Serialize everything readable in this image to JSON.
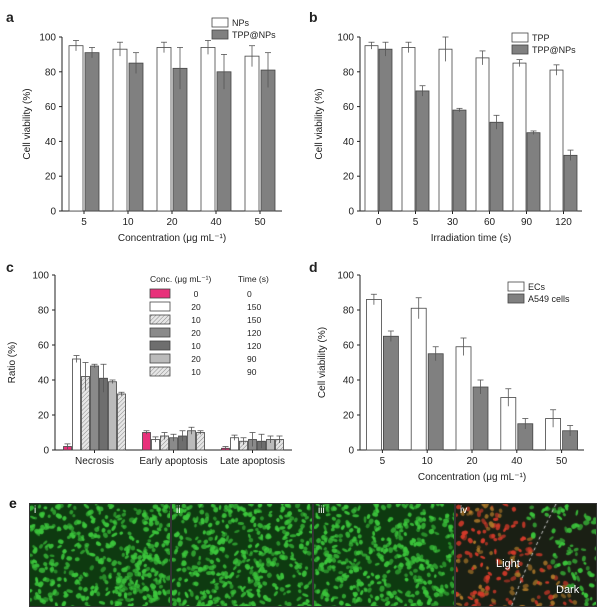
{
  "chart_data": [
    {
      "panel": "a",
      "type": "bar",
      "categories": [
        "5",
        "10",
        "20",
        "40",
        "50"
      ],
      "xlabel": "Concentration (μg mL⁻¹)",
      "ylabel": "Cell viability (%)",
      "ylim": [
        0,
        100
      ],
      "yticks": [
        "0",
        "20",
        "40",
        "60",
        "80",
        "100"
      ],
      "legend_position": "top-right",
      "series": [
        {
          "name": "NPs",
          "color": "#ffffff",
          "values": [
            95,
            93,
            94,
            94,
            89
          ],
          "errors": [
            3,
            4,
            3,
            4,
            6
          ]
        },
        {
          "name": "TPP@NPs",
          "color": "#808080",
          "values": [
            91,
            85,
            82,
            80,
            81
          ],
          "errors": [
            3,
            6,
            12,
            10,
            10
          ]
        }
      ]
    },
    {
      "panel": "b",
      "type": "bar",
      "categories": [
        "0",
        "5",
        "30",
        "60",
        "90",
        "120"
      ],
      "xlabel": "Irradiation time (s)",
      "ylabel": "Cell viability (%)",
      "ylim": [
        0,
        100
      ],
      "yticks": [
        "0",
        "20",
        "40",
        "60",
        "80",
        "100"
      ],
      "legend_position": "top-right",
      "series": [
        {
          "name": "TPP",
          "color": "#ffffff",
          "values": [
            95,
            94,
            93,
            88,
            85,
            81
          ],
          "errors": [
            2,
            3,
            7,
            4,
            2,
            3
          ]
        },
        {
          "name": "TPP@NPs",
          "color": "#808080",
          "values": [
            93,
            69,
            58,
            51,
            45,
            32
          ],
          "errors": [
            4,
            3,
            1,
            4,
            1,
            3
          ]
        }
      ]
    },
    {
      "panel": "c",
      "type": "bar",
      "categories": [
        "Necrosis",
        "Early apoptosis",
        "Late apoptosis"
      ],
      "ylabel": "Ratio (%)",
      "ylim": [
        0,
        100
      ],
      "yticks": [
        "0",
        "20",
        "40",
        "60",
        "80",
        "100"
      ],
      "legend_position": "top-right",
      "legend_header": [
        "Conc. (μg mL⁻¹)",
        "Time (s)"
      ],
      "series": [
        {
          "conc": "0",
          "time": "0",
          "color": "#e8307a",
          "pattern": "solid",
          "values": [
            2,
            10,
            1
          ],
          "errors": [
            1.5,
            1,
            1
          ]
        },
        {
          "conc": "20",
          "time": "150",
          "color": "#ffffff",
          "pattern": "solid",
          "values": [
            52,
            6,
            7
          ],
          "errors": [
            2,
            1.5,
            1.5
          ]
        },
        {
          "conc": "10",
          "time": "150",
          "color": "#d8d8d8",
          "pattern": "hatch",
          "values": [
            42,
            8,
            5
          ],
          "errors": [
            8,
            2,
            2
          ]
        },
        {
          "conc": "20",
          "time": "120",
          "color": "#8a8a8a",
          "pattern": "solid",
          "values": [
            48,
            7,
            6
          ],
          "errors": [
            1,
            2,
            4
          ]
        },
        {
          "conc": "10",
          "time": "120",
          "color": "#6e6e6e",
          "pattern": "solid",
          "values": [
            41,
            8,
            5
          ],
          "errors": [
            8,
            3,
            4
          ]
        },
        {
          "conc": "20",
          "time": "90",
          "color": "#bbbbbb",
          "pattern": "solid",
          "values": [
            39,
            11,
            6
          ],
          "errors": [
            1,
            2,
            2
          ]
        },
        {
          "conc": "10",
          "time": "90",
          "color": "#cfcfcf",
          "pattern": "hatch",
          "values": [
            32,
            10,
            6
          ],
          "errors": [
            1,
            1,
            2
          ]
        }
      ]
    },
    {
      "panel": "d",
      "type": "bar",
      "categories": [
        "5",
        "10",
        "20",
        "40",
        "50"
      ],
      "xlabel": "Concentration (μg mL⁻¹)",
      "ylabel": "Cell viability (%)",
      "ylim": [
        0,
        100
      ],
      "yticks": [
        "0",
        "20",
        "40",
        "60",
        "80",
        "100"
      ],
      "legend_position": "top-right",
      "series": [
        {
          "name": "ECs",
          "color": "#ffffff",
          "values": [
            86,
            81,
            59,
            30,
            18
          ],
          "errors": [
            3,
            6,
            5,
            5,
            5
          ]
        },
        {
          "name": "A549 cells",
          "color": "#808080",
          "values": [
            65,
            55,
            36,
            15,
            11
          ],
          "errors": [
            3,
            4,
            4,
            3,
            3
          ]
        }
      ]
    }
  ],
  "panel_e": {
    "letter": "e",
    "images": [
      {
        "label": "i",
        "mix": "green"
      },
      {
        "label": "ii",
        "mix": "green"
      },
      {
        "label": "iii",
        "mix": "green"
      },
      {
        "label": "iv",
        "mix": "split",
        "text_light": "Light",
        "text_dark": "Dark"
      }
    ]
  },
  "colors": {
    "open_bar": "#ffffff",
    "filled_bar": "#808080",
    "magenta": "#e8307a",
    "cell_green": "#3cc63c",
    "cell_red": "#d23a2a"
  }
}
